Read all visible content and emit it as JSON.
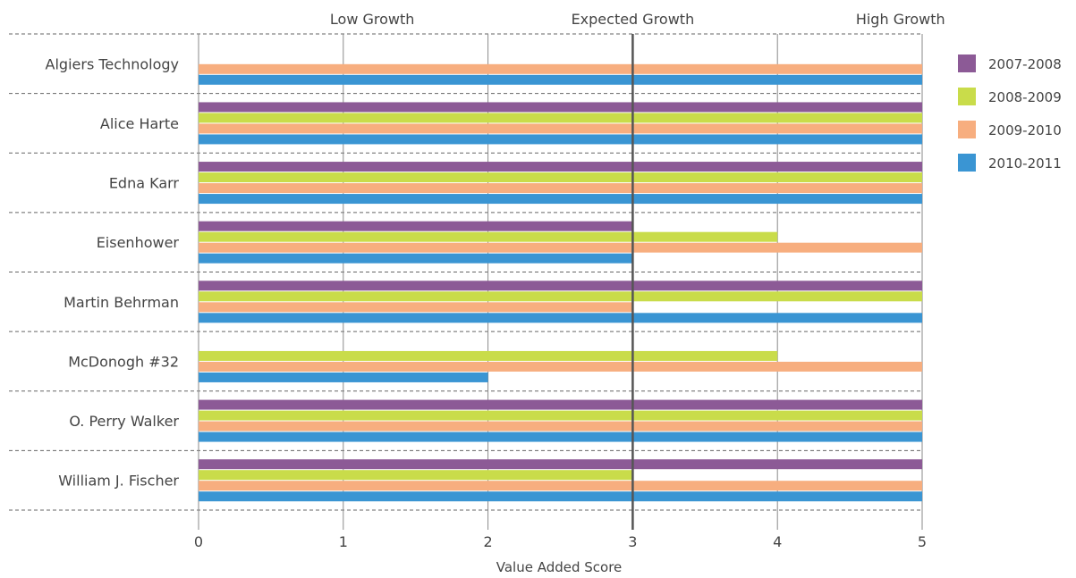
{
  "chart_data": {
    "type": "bar",
    "orientation": "horizontal",
    "categories": [
      "Algiers Technology",
      "Alice Harte",
      "Edna Karr",
      "Eisenhower",
      "Martin Behrman",
      "McDonogh #32",
      "O. Perry Walker",
      "William J. Fischer"
    ],
    "series": [
      {
        "name": "2007-2008",
        "color": "#8c5a96",
        "values": [
          null,
          5,
          5,
          3,
          5,
          null,
          5,
          5
        ]
      },
      {
        "name": "2008-2009",
        "color": "#c9dc4a",
        "values": [
          null,
          5,
          5,
          4,
          5,
          4,
          5,
          3
        ]
      },
      {
        "name": "2009-2010",
        "color": "#f7ae7f",
        "values": [
          5,
          5,
          5,
          5,
          3,
          5,
          5,
          5
        ]
      },
      {
        "name": "2010-2011",
        "color": "#3a95d3",
        "values": [
          5,
          5,
          5,
          3,
          5,
          2,
          5,
          5
        ]
      }
    ],
    "xlabel": "Value Added Score",
    "xlim": [
      0,
      5
    ],
    "xticks": [
      "0",
      "1",
      "2",
      "3",
      "4",
      "5"
    ],
    "zones": [
      "Low Growth",
      "Expected Growth",
      "High Growth"
    ],
    "reference_line": 3,
    "grid": true,
    "legend_position": "right"
  }
}
